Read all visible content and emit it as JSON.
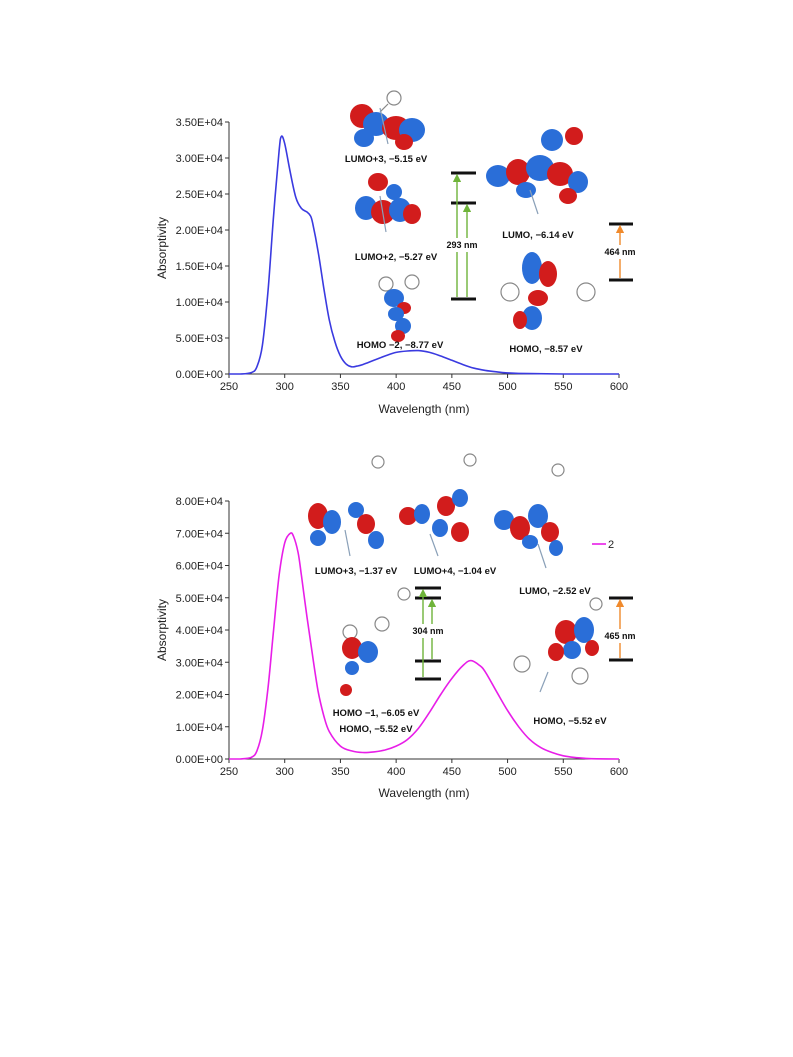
{
  "chart_data": [
    {
      "type": "line",
      "xlabel": "Wavelength (nm)",
      "ylabel": "Absorptivity",
      "xlim": [
        250,
        600
      ],
      "ylim": [
        0,
        35000
      ],
      "xticks": [
        "250",
        "300",
        "350",
        "400",
        "450",
        "500",
        "550",
        "600"
      ],
      "yticks": [
        "0.00E+00",
        "5.00E+03",
        "1.00E+04",
        "1.50E+04",
        "2.00E+04",
        "2.50E+04",
        "3.00E+04",
        "3.50E+04"
      ],
      "grid": false,
      "series": [
        {
          "color": "#3a3ae0",
          "x": [
            250,
            260,
            270,
            275,
            280,
            285,
            290,
            295,
            297,
            300,
            305,
            310,
            315,
            320,
            323,
            325,
            330,
            335,
            340,
            345,
            350,
            355,
            360,
            365,
            370,
            375,
            380,
            390,
            400,
            410,
            420,
            430,
            440,
            450,
            460,
            470,
            480,
            490,
            500,
            520,
            550,
            600
          ],
          "y": [
            0,
            0,
            200,
            1000,
            4000,
            11500,
            22000,
            31000,
            33000,
            32000,
            28000,
            24500,
            23000,
            22500,
            22000,
            21000,
            17000,
            12000,
            7500,
            4500,
            2500,
            1400,
            1000,
            1100,
            1300,
            1600,
            1900,
            2500,
            3000,
            3200,
            3250,
            3000,
            2500,
            1900,
            1300,
            800,
            500,
            300,
            150,
            50,
            0,
            0
          ]
        }
      ],
      "annotations": [
        {
          "text": "LUMO+3, −5.15 eV"
        },
        {
          "text": "LUMO+2, −5.27 eV"
        },
        {
          "text": "HOMO −2, −8.77 eV"
        },
        {
          "text": "LUMO, −6.14 eV"
        },
        {
          "text": "HOMO, −8.57 eV"
        },
        {
          "text": "293 nm"
        },
        {
          "text": "464 nm"
        }
      ]
    },
    {
      "type": "line",
      "xlabel": "Wavelength (nm)",
      "ylabel": "Absorptivity",
      "xlim": [
        250,
        600
      ],
      "ylim": [
        0,
        80000
      ],
      "xticks": [
        "250",
        "300",
        "350",
        "400",
        "450",
        "500",
        "550",
        "600"
      ],
      "yticks": [
        "0.00E+00",
        "1.00E+04",
        "2.00E+04",
        "3.00E+04",
        "4.00E+04",
        "5.00E+04",
        "6.00E+04",
        "7.00E+04",
        "8.00E+04"
      ],
      "grid": false,
      "legend": "right",
      "series": [
        {
          "name": "2",
          "color": "#e81ee8",
          "x": [
            250,
            260,
            270,
            275,
            280,
            285,
            290,
            295,
            300,
            305,
            308,
            312,
            315,
            320,
            325,
            330,
            335,
            340,
            350,
            360,
            370,
            380,
            390,
            400,
            410,
            420,
            430,
            440,
            450,
            460,
            467,
            475,
            480,
            490,
            500,
            510,
            520,
            530,
            540,
            550,
            560,
            570,
            580,
            600
          ],
          "y": [
            0,
            0,
            500,
            2500,
            9000,
            22000,
            40000,
            57000,
            67000,
            70000,
            69000,
            64000,
            57000,
            44000,
            32000,
            21000,
            13500,
            8500,
            4000,
            2500,
            2000,
            2200,
            2800,
            4000,
            6000,
            9500,
            14500,
            20000,
            25000,
            29000,
            30500,
            29000,
            27000,
            21000,
            15000,
            10000,
            6000,
            3500,
            2000,
            1000,
            500,
            200,
            50,
            0
          ]
        }
      ],
      "annotations": [
        {
          "text": "LUMO+3, −1.37 eV"
        },
        {
          "text": "LUMO+4, −1.04 eV"
        },
        {
          "text": "LUMO, −2.52 eV"
        },
        {
          "text": "HOMO −1, −6.05 eV"
        },
        {
          "text": "HOMO, −5.52 eV"
        },
        {
          "text": "HOMO, −5.52 eV"
        },
        {
          "text": "304 nm"
        },
        {
          "text": "465 nm"
        }
      ]
    }
  ]
}
